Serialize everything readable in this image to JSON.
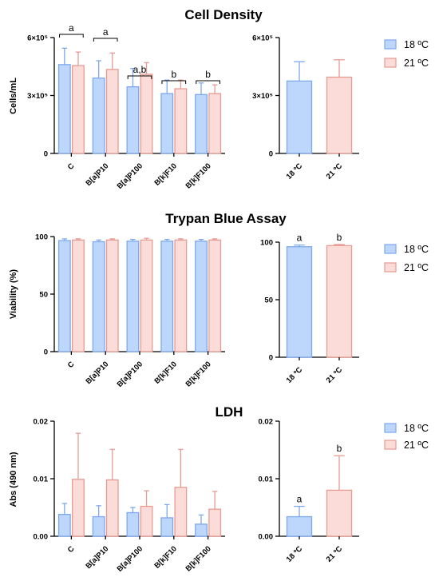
{
  "colors": {
    "c18_fill": "#bcd7fb",
    "c18_stroke": "#7ea8ee",
    "c21_fill": "#fbdcd8",
    "c21_stroke": "#e79b92",
    "axis": "#000000"
  },
  "legend": {
    "items": [
      "18 ºC",
      "21 ºC"
    ]
  },
  "chart_data": [
    {
      "type": "bar",
      "title": "Cell Density",
      "ylabel": "Cells/mL",
      "categories": [
        "C",
        "B[a]P10",
        "B[a]P100",
        "B[k]F10",
        "B[k]F100"
      ],
      "ylim": [
        0,
        600000
      ],
      "yticks": [
        "0",
        "3×10⁵",
        "6×10⁵"
      ],
      "series": [
        {
          "name": "18 ºC",
          "values": [
            460000,
            390000,
            345000,
            310000,
            305000
          ],
          "errors": [
            85000,
            90000,
            95000,
            70000,
            60000
          ]
        },
        {
          "name": "21 ºC",
          "values": [
            455000,
            435000,
            410000,
            335000,
            310000
          ],
          "errors": [
            70000,
            85000,
            60000,
            45000,
            45000
          ]
        }
      ],
      "annotations": [
        "a",
        "a",
        "a,b",
        "b",
        "b"
      ]
    },
    {
      "type": "bar",
      "title": "",
      "ylabel": "",
      "categories": [
        "18 ºC",
        "21 ºC"
      ],
      "ylim": [
        0,
        600000
      ],
      "yticks": [
        "0",
        "3×10⁵",
        "6×10⁵"
      ],
      "values": [
        375000,
        395000
      ],
      "errors": [
        100000,
        90000
      ],
      "annotations": []
    },
    {
      "type": "bar",
      "title": "Trypan Blue Assay",
      "ylabel": "Viability (%)",
      "categories": [
        "C",
        "B[a]P10",
        "B[a]P100",
        "B[k]F10",
        "B[k]F100"
      ],
      "ylim": [
        0,
        100
      ],
      "yticks": [
        "0",
        "50",
        "100"
      ],
      "series": [
        {
          "name": "18 ºC",
          "values": [
            96.5,
            95.5,
            96,
            96,
            96
          ],
          "errors": [
            1.5,
            1.5,
            1.5,
            1.5,
            1.5
          ]
        },
        {
          "name": "21 ºC",
          "values": [
            97,
            97,
            97,
            97,
            97
          ],
          "errors": [
            1,
            1,
            1.5,
            1,
            1
          ]
        }
      ],
      "annotations": []
    },
    {
      "type": "bar",
      "title": "",
      "ylabel": "",
      "categories": [
        "18 ºC",
        "21 ºC"
      ],
      "ylim": [
        0,
        100
      ],
      "yticks": [
        "0",
        "50",
        "100"
      ],
      "values": [
        96,
        97
      ],
      "errors": [
        1.5,
        1
      ],
      "annotations": [
        "a",
        "b"
      ]
    },
    {
      "type": "bar",
      "title": "LDH",
      "ylabel": "Abs (490 nm)",
      "categories": [
        "C",
        "B[a]P10",
        "B[a]P100",
        "B[k]F10",
        "B[k]F100"
      ],
      "ylim": [
        0,
        0.02
      ],
      "yticks": [
        "0.00",
        "0.01",
        "0.02"
      ],
      "series": [
        {
          "name": "18 ºC",
          "values": [
            0.0038,
            0.0034,
            0.0041,
            0.0032,
            0.0021
          ],
          "errors": [
            0.0019,
            0.0019,
            0.0009,
            0.0023,
            0.0016
          ]
        },
        {
          "name": "21 ºC",
          "values": [
            0.0099,
            0.0098,
            0.0052,
            0.0085,
            0.0047
          ],
          "errors": [
            0.008,
            0.0053,
            0.0027,
            0.0066,
            0.0031
          ]
        }
      ],
      "annotations": []
    },
    {
      "type": "bar",
      "title": "",
      "ylabel": "",
      "categories": [
        "18 ºC",
        "21 ºC"
      ],
      "ylim": [
        0,
        0.02
      ],
      "yticks": [
        "0.00",
        "0.01",
        "0.02"
      ],
      "values": [
        0.0034,
        0.008
      ],
      "errors": [
        0.0018,
        0.006
      ],
      "annotations": [
        "a",
        "b"
      ]
    }
  ]
}
